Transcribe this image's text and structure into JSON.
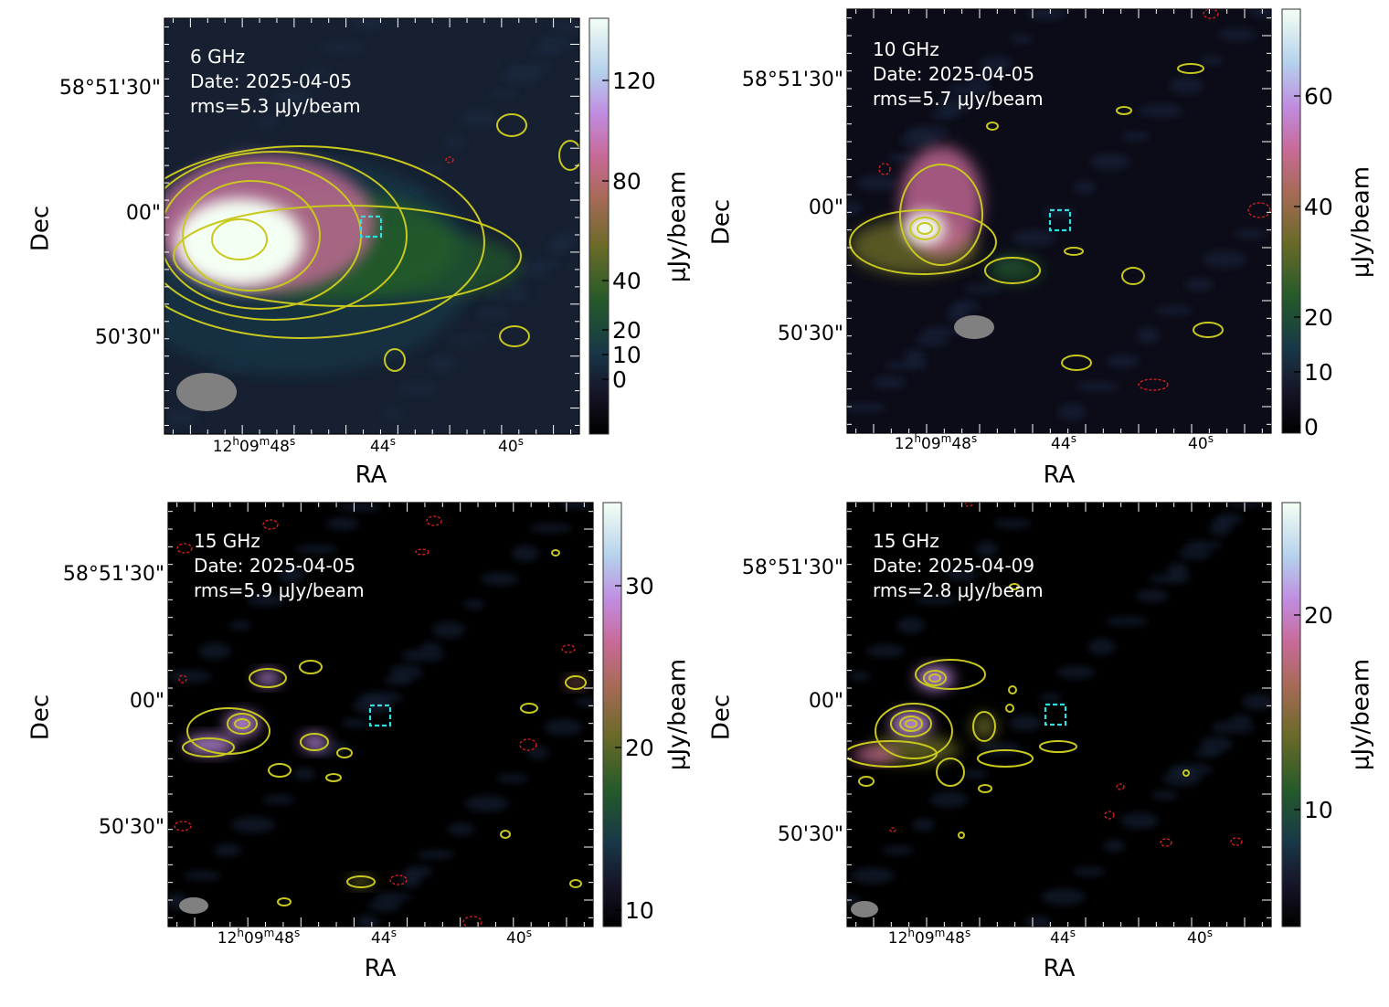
{
  "chart_data": [
    {
      "type": "heatmap",
      "annotation": [
        "6 GHz",
        "Date: 2025-04-05",
        "rms=5.3 μJy/beam"
      ],
      "xlabel": "RA",
      "ylabel": "Dec",
      "xticklabels": [
        "12h09m48s",
        "44s",
        "40s"
      ],
      "yticklabels": [
        "58°51'30\"",
        "00\"",
        "50'30\""
      ],
      "colorbar": {
        "label": "μJy/beam",
        "ticks": [
          "120",
          "80",
          "40",
          "20",
          "10",
          "0"
        ]
      },
      "contour_color": "#c8c81e",
      "negative_contour_color": "#e02020",
      "marker_color": "#30e0e0"
    },
    {
      "type": "heatmap",
      "annotation": [
        "10 GHz",
        "Date: 2025-04-05",
        "rms=5.7 μJy/beam"
      ],
      "xlabel": "RA",
      "ylabel": "Dec",
      "xticklabels": [
        "12h09m48s",
        "44s",
        "40s"
      ],
      "yticklabels": [
        "58°51'30\"",
        "00\"",
        "50'30\""
      ],
      "colorbar": {
        "label": "μJy/beam",
        "ticks": [
          "60",
          "40",
          "20",
          "10",
          "0"
        ]
      },
      "contour_color": "#c8c81e",
      "negative_contour_color": "#e02020",
      "marker_color": "#30e0e0"
    },
    {
      "type": "heatmap",
      "annotation": [
        "15 GHz",
        "Date: 2025-04-05",
        "rms=5.9 μJy/beam"
      ],
      "xlabel": "RA",
      "ylabel": "Dec",
      "xticklabels": [
        "12h09m48s",
        "44s",
        "40s"
      ],
      "yticklabels": [
        "58°51'30\"",
        "00\"",
        "50'30\""
      ],
      "colorbar": {
        "label": "μJy/beam",
        "ticks": [
          "30",
          "20",
          "10"
        ]
      },
      "contour_color": "#c8c81e",
      "negative_contour_color": "#e02020",
      "marker_color": "#30e0e0"
    },
    {
      "type": "heatmap",
      "annotation": [
        "15 GHz",
        "Date: 2025-04-09",
        "rms=2.8 μJy/beam"
      ],
      "xlabel": "RA",
      "ylabel": "Dec",
      "xticklabels": [
        "12h09m48s",
        "44s",
        "40s"
      ],
      "yticklabels": [
        "58°51'30\"",
        "00\"",
        "50'30\""
      ],
      "colorbar": {
        "label": "μJy/beam",
        "ticks": [
          "20",
          "10"
        ]
      },
      "contour_color": "#c8c81e",
      "negative_contour_color": "#e02020",
      "marker_color": "#30e0e0"
    }
  ]
}
